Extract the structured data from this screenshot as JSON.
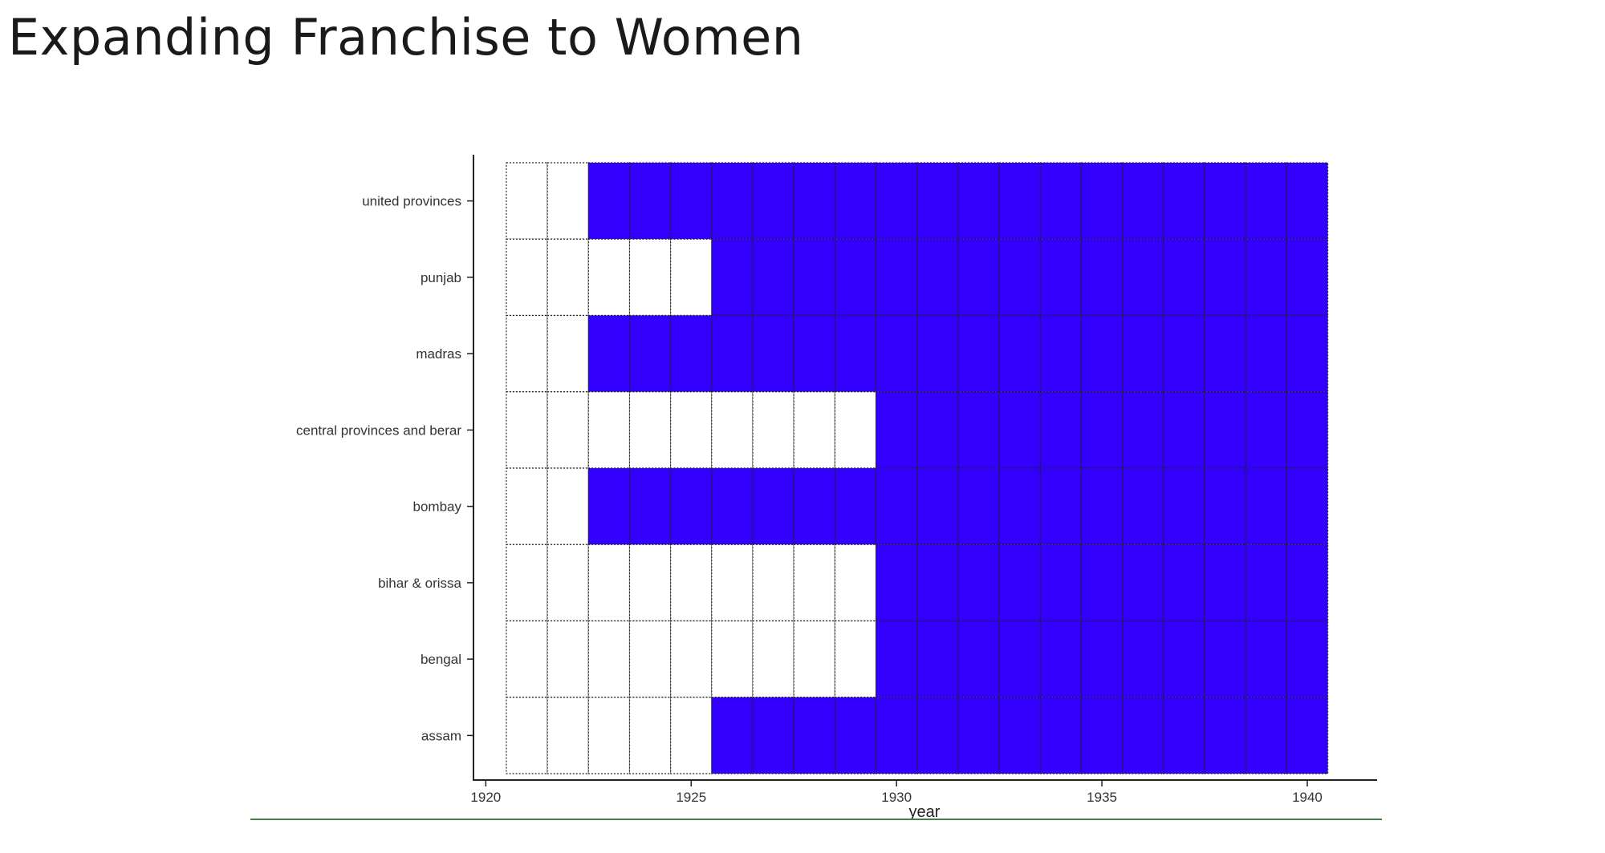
{
  "slide": {
    "title": "Expanding Franchise to Women"
  },
  "colors": {
    "enfranchised": "#3300ff",
    "not_enfranchised": "#ffffff",
    "cell_border": "#222222",
    "axis": "#222222",
    "title_text": "#1a1a1a",
    "footer_rule": "#4a7a4a"
  },
  "chart_data": {
    "type": "heatmap",
    "title": "",
    "xlabel": "year",
    "ylabel": "",
    "x_range": [
      1921,
      1940
    ],
    "x_ticks": [
      1920,
      1925,
      1930,
      1935,
      1940
    ],
    "xlim": [
      1919.7,
      1941.7
    ],
    "categories": [
      "united provinces",
      "punjab",
      "madras",
      "central provinces and berar",
      "bombay",
      "bihar & orissa",
      "bengal",
      "assam"
    ],
    "series": [
      {
        "province": "united provinces",
        "first_year_enfranchised": 1923
      },
      {
        "province": "punjab",
        "first_year_enfranchised": 1926
      },
      {
        "province": "madras",
        "first_year_enfranchised": 1923
      },
      {
        "province": "central provinces and berar",
        "first_year_enfranchised": 1930
      },
      {
        "province": "bombay",
        "first_year_enfranchised": 1923
      },
      {
        "province": "bihar & orissa",
        "first_year_enfranchised": 1930
      },
      {
        "province": "bengal",
        "first_year_enfranchised": 1930
      },
      {
        "province": "assam",
        "first_year_enfranchised": 1926
      }
    ],
    "grid": true,
    "legend": "none"
  }
}
